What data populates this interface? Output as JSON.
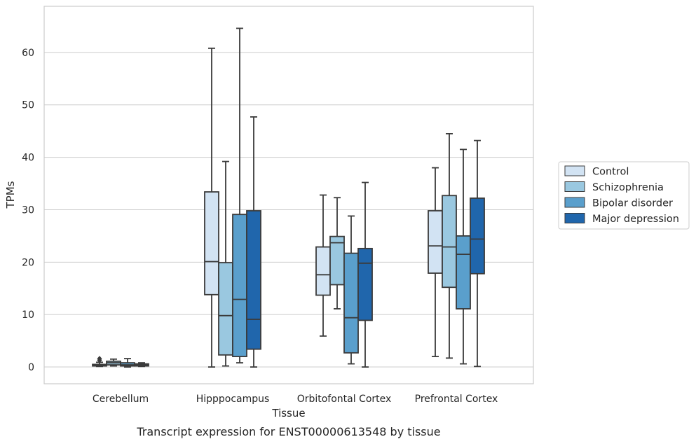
{
  "chart_data": {
    "type": "box",
    "xlabel": "Tissue",
    "ylabel": "TPMs",
    "caption": "Transcript expression for ENST00000613548 by tissue",
    "categories": [
      "Cerebellum",
      "Hipppocampus",
      "Orbitofontal Cortex",
      "Prefrontal Cortex"
    ],
    "ylim": [
      -3.2,
      68.8
    ],
    "yticks": [
      0,
      10,
      20,
      30,
      40,
      50,
      60
    ],
    "grid": true,
    "legend_position": "right",
    "series": [
      {
        "name": "Control",
        "color": "#d2e3f3",
        "boxes": [
          {
            "whislo": 0.1,
            "q1": 0.2,
            "med": 0.3,
            "q3": 0.5,
            "whishi": 0.9,
            "fliers": [
              1.3,
              1.6
            ]
          },
          {
            "whislo": 0.0,
            "q1": 13.8,
            "med": 20.1,
            "q3": 33.4,
            "whishi": 60.8,
            "fliers": []
          },
          {
            "whislo": 5.9,
            "q1": 13.7,
            "med": 17.6,
            "q3": 22.9,
            "whishi": 32.8,
            "fliers": []
          },
          {
            "whislo": 2.0,
            "q1": 17.9,
            "med": 23.1,
            "q3": 29.8,
            "whishi": 38.0,
            "fliers": []
          }
        ]
      },
      {
        "name": "Schizophrenia",
        "color": "#9ac8e0",
        "boxes": [
          {
            "whislo": 0.2,
            "q1": 0.4,
            "med": 0.8,
            "q3": 1.1,
            "whishi": 1.5,
            "fliers": []
          },
          {
            "whislo": 0.2,
            "q1": 2.3,
            "med": 9.8,
            "q3": 19.9,
            "whishi": 39.2,
            "fliers": []
          },
          {
            "whislo": 11.1,
            "q1": 15.7,
            "med": 23.7,
            "q3": 24.9,
            "whishi": 32.3,
            "fliers": []
          },
          {
            "whislo": 1.7,
            "q1": 15.2,
            "med": 22.9,
            "q3": 32.7,
            "whishi": 44.5,
            "fliers": []
          }
        ]
      },
      {
        "name": "Bipolar disorder",
        "color": "#5a9fcc",
        "boxes": [
          {
            "whislo": 0.0,
            "q1": 0.2,
            "med": 0.4,
            "q3": 0.8,
            "whishi": 1.6,
            "fliers": []
          },
          {
            "whislo": 0.8,
            "q1": 2.0,
            "med": 12.9,
            "q3": 29.1,
            "whishi": 64.6,
            "fliers": []
          },
          {
            "whislo": 0.6,
            "q1": 2.7,
            "med": 9.4,
            "q3": 21.7,
            "whishi": 28.8,
            "fliers": []
          },
          {
            "whislo": 0.6,
            "q1": 11.1,
            "med": 21.5,
            "q3": 25.0,
            "whishi": 41.5,
            "fliers": []
          }
        ]
      },
      {
        "name": "Major depression",
        "color": "#2066ac",
        "boxes": [
          {
            "whislo": 0.1,
            "q1": 0.2,
            "med": 0.4,
            "q3": 0.6,
            "whishi": 0.8,
            "fliers": []
          },
          {
            "whislo": 0.0,
            "q1": 3.4,
            "med": 9.1,
            "q3": 29.8,
            "whishi": 47.7,
            "fliers": []
          },
          {
            "whislo": 0.0,
            "q1": 8.9,
            "med": 19.8,
            "q3": 22.6,
            "whishi": 35.2,
            "fliers": []
          },
          {
            "whislo": 0.1,
            "q1": 17.8,
            "med": 24.4,
            "q3": 32.2,
            "whishi": 43.2,
            "fliers": []
          }
        ]
      }
    ]
  }
}
